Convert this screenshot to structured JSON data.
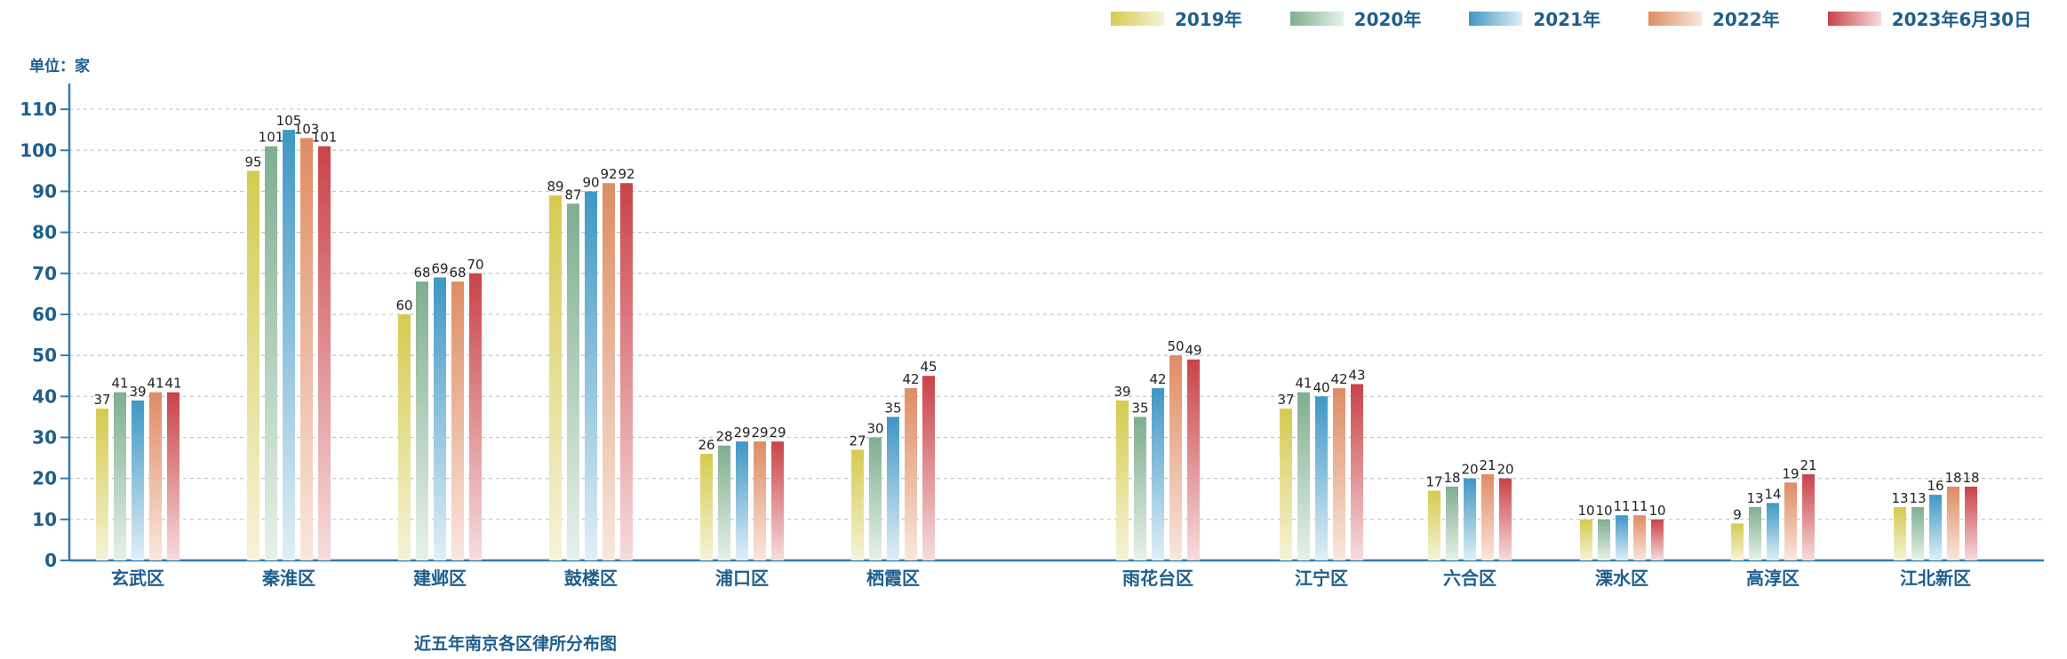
{
  "legend": [
    {
      "label": "2019年",
      "color_top": "#d4cb4e",
      "color_bottom": "#f5f3d9"
    },
    {
      "label": "2020年",
      "color_top": "#7fae8f",
      "color_bottom": "#e7f1ea"
    },
    {
      "label": "2021年",
      "color_top": "#3f97c4",
      "color_bottom": "#e0eff7"
    },
    {
      "label": "2022年",
      "color_top": "#df8c63",
      "color_bottom": "#f9e7de"
    },
    {
      "label": "2023年6月30日",
      "color_top": "#c94348",
      "color_bottom": "#f6dcdd"
    }
  ],
  "unit_label": "单位：家",
  "caption": "近五年南京各区律所分布图",
  "chart_data": {
    "type": "bar",
    "categories": [
      "玄武区",
      "秦淮区",
      "建邺区",
      "鼓楼区",
      "浦口区",
      "栖霞区",
      "雨花台区",
      "江宁区",
      "六合区",
      "溧水区",
      "高淳区",
      "江北新区"
    ],
    "series": [
      {
        "name": "2019年",
        "values": [
          37,
          95,
          60,
          89,
          26,
          27,
          39,
          37,
          17,
          10,
          9,
          13
        ]
      },
      {
        "name": "2020年",
        "values": [
          41,
          101,
          68,
          87,
          28,
          30,
          35,
          41,
          18,
          10,
          13,
          13
        ]
      },
      {
        "name": "2021年",
        "values": [
          39,
          105,
          69,
          90,
          29,
          35,
          42,
          40,
          20,
          11,
          14,
          16
        ]
      },
      {
        "name": "2022年",
        "values": [
          41,
          103,
          68,
          92,
          29,
          42,
          50,
          42,
          21,
          11,
          19,
          18
        ]
      },
      {
        "name": "2023年6月30日",
        "values": [
          41,
          101,
          70,
          92,
          29,
          45,
          49,
          43,
          20,
          10,
          21,
          18
        ]
      }
    ],
    "yticks": [
      0,
      10,
      20,
      30,
      40,
      50,
      60,
      70,
      80,
      90,
      100,
      110
    ],
    "ylim": [
      0,
      115
    ],
    "grid": true,
    "legend_position": "top-right"
  },
  "colors": {
    "axis": "#2f7cb0",
    "text": "#1d5e8c",
    "grid": "#b9c6cf",
    "label": "#222222"
  }
}
